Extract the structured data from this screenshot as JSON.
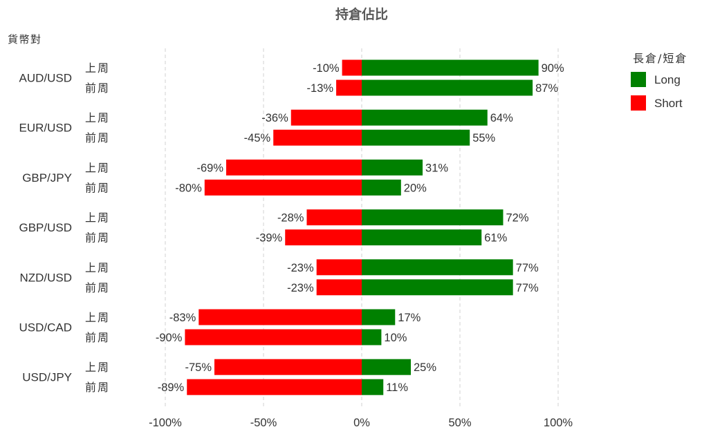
{
  "chart_data": {
    "type": "bar",
    "orientation": "horizontal",
    "title": "持倉佔比",
    "ylabel": "貨幣對",
    "xlabel": "",
    "xlim": [
      -100,
      100
    ],
    "x_ticks": [
      -100,
      -50,
      0,
      50,
      100
    ],
    "x_tick_labels": [
      "-100%",
      "-50%",
      "0%",
      "50%",
      "100%"
    ],
    "value_suffix": "%",
    "grid": true,
    "legend": {
      "title": "長倉/短倉",
      "placement": "right",
      "entries": [
        {
          "name": "Long",
          "color": "#008000"
        },
        {
          "name": "Short",
          "color": "#ff0000"
        }
      ]
    },
    "periods": [
      "上周",
      "前周"
    ],
    "categories": [
      "AUD/USD",
      "EUR/USD",
      "GBP/JPY",
      "GBP/USD",
      "NZD/USD",
      "USD/CAD",
      "USD/JPY"
    ],
    "series": [
      {
        "name": "Long",
        "color": "#008000",
        "values": [
          [
            90,
            87
          ],
          [
            64,
            55
          ],
          [
            31,
            20
          ],
          [
            72,
            61
          ],
          [
            77,
            77
          ],
          [
            17,
            10
          ],
          [
            25,
            11
          ]
        ]
      },
      {
        "name": "Short",
        "color": "#ff0000",
        "values": [
          [
            -10,
            -13
          ],
          [
            -36,
            -45
          ],
          [
            -69,
            -80
          ],
          [
            -28,
            -39
          ],
          [
            -23,
            -23
          ],
          [
            -83,
            -90
          ],
          [
            -75,
            -89
          ]
        ]
      }
    ]
  }
}
